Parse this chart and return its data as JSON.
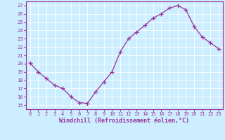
{
  "x": [
    0,
    1,
    2,
    3,
    4,
    5,
    6,
    7,
    8,
    9,
    10,
    11,
    12,
    13,
    14,
    15,
    16,
    17,
    18,
    19,
    20,
    21,
    22,
    23
  ],
  "y": [
    20.1,
    19.0,
    18.2,
    17.4,
    17.0,
    16.0,
    15.3,
    15.2,
    16.6,
    17.8,
    19.0,
    21.4,
    23.0,
    23.8,
    24.6,
    25.5,
    26.0,
    26.7,
    27.0,
    26.5,
    24.5,
    23.2,
    22.5,
    21.8
  ],
  "xlim": [
    -0.5,
    23.5
  ],
  "ylim": [
    14.5,
    27.5
  ],
  "yticks": [
    15,
    16,
    17,
    18,
    19,
    20,
    21,
    22,
    23,
    24,
    25,
    26,
    27
  ],
  "xticks": [
    0,
    1,
    2,
    3,
    4,
    5,
    6,
    7,
    8,
    9,
    10,
    11,
    12,
    13,
    14,
    15,
    16,
    17,
    18,
    19,
    20,
    21,
    22,
    23
  ],
  "xlabel": "Windchill (Refroidissement éolien,°C)",
  "line_color": "#993399",
  "marker": "+",
  "marker_size": 4,
  "bg_color": "#cceeff",
  "grid_color": "#ffffff",
  "tick_color": "#993399",
  "label_color": "#993399",
  "font_family": "monospace",
  "tick_fontsize": 5.0,
  "xlabel_fontsize": 6.0
}
